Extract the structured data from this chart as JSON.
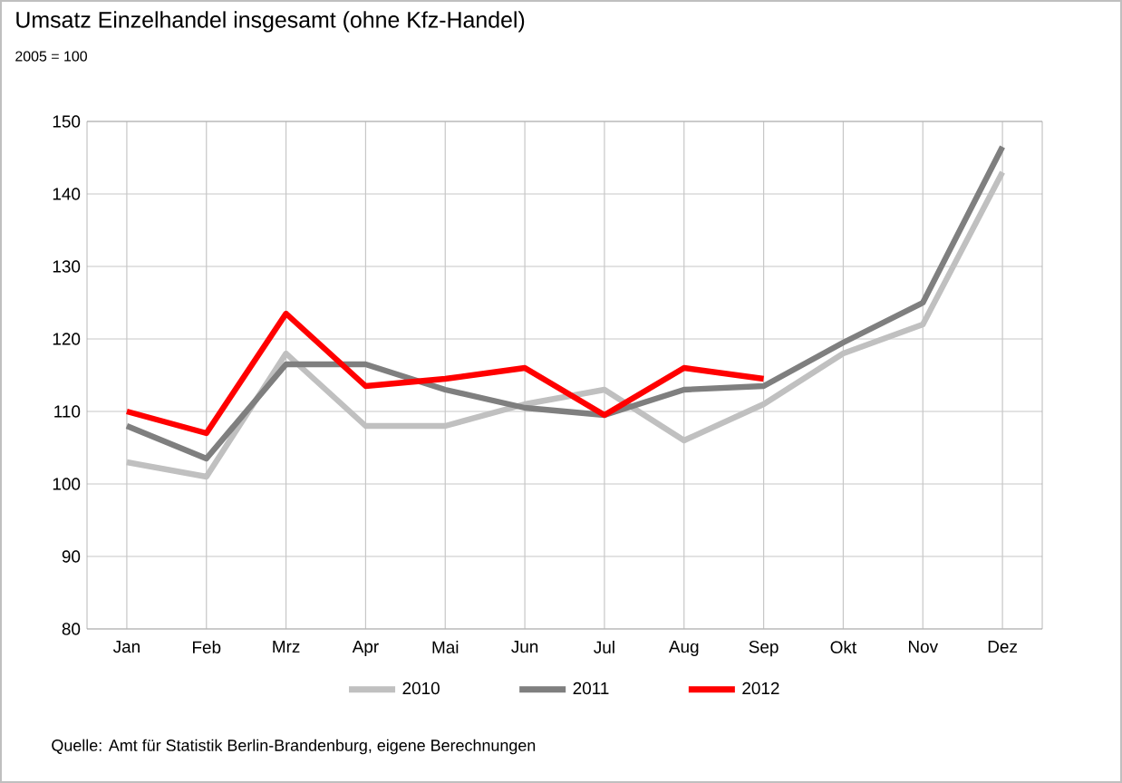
{
  "chart_data": {
    "type": "line",
    "title": "Umsatz Einzelhandel insgesamt (ohne Kfz-Handel)",
    "subtitle": "2005 = 100",
    "categories": [
      "Jan",
      "Feb",
      "Mrz",
      "Apr",
      "Mai",
      "Jun",
      "Jul",
      "Aug",
      "Sep",
      "Okt",
      "Nov",
      "Dez"
    ],
    "series": [
      {
        "name": "2010",
        "color": "#c0c0c0",
        "values": [
          103,
          101,
          118,
          108,
          108,
          111,
          113,
          106,
          111,
          118,
          122,
          143
        ]
      },
      {
        "name": "2011",
        "color": "#7f7f7f",
        "values": [
          108,
          103.5,
          116.5,
          116.5,
          113,
          110.5,
          109.5,
          113,
          113.5,
          119.5,
          125,
          146.5
        ]
      },
      {
        "name": "2012",
        "color": "#ff0000",
        "values": [
          110,
          107,
          123.5,
          113.5,
          114.5,
          116,
          109.5,
          116,
          114.5,
          null,
          null,
          null
        ]
      }
    ],
    "ylim": [
      80,
      150
    ],
    "yticks": [
      80,
      90,
      100,
      110,
      120,
      130,
      140,
      150
    ],
    "grid": true,
    "legend": "bottom",
    "marker": "none",
    "line_style": "solid",
    "annotations": [
      "Quelle: Amt für Statistik Berlin-Brandenburg, eigene Berechnungen"
    ]
  }
}
